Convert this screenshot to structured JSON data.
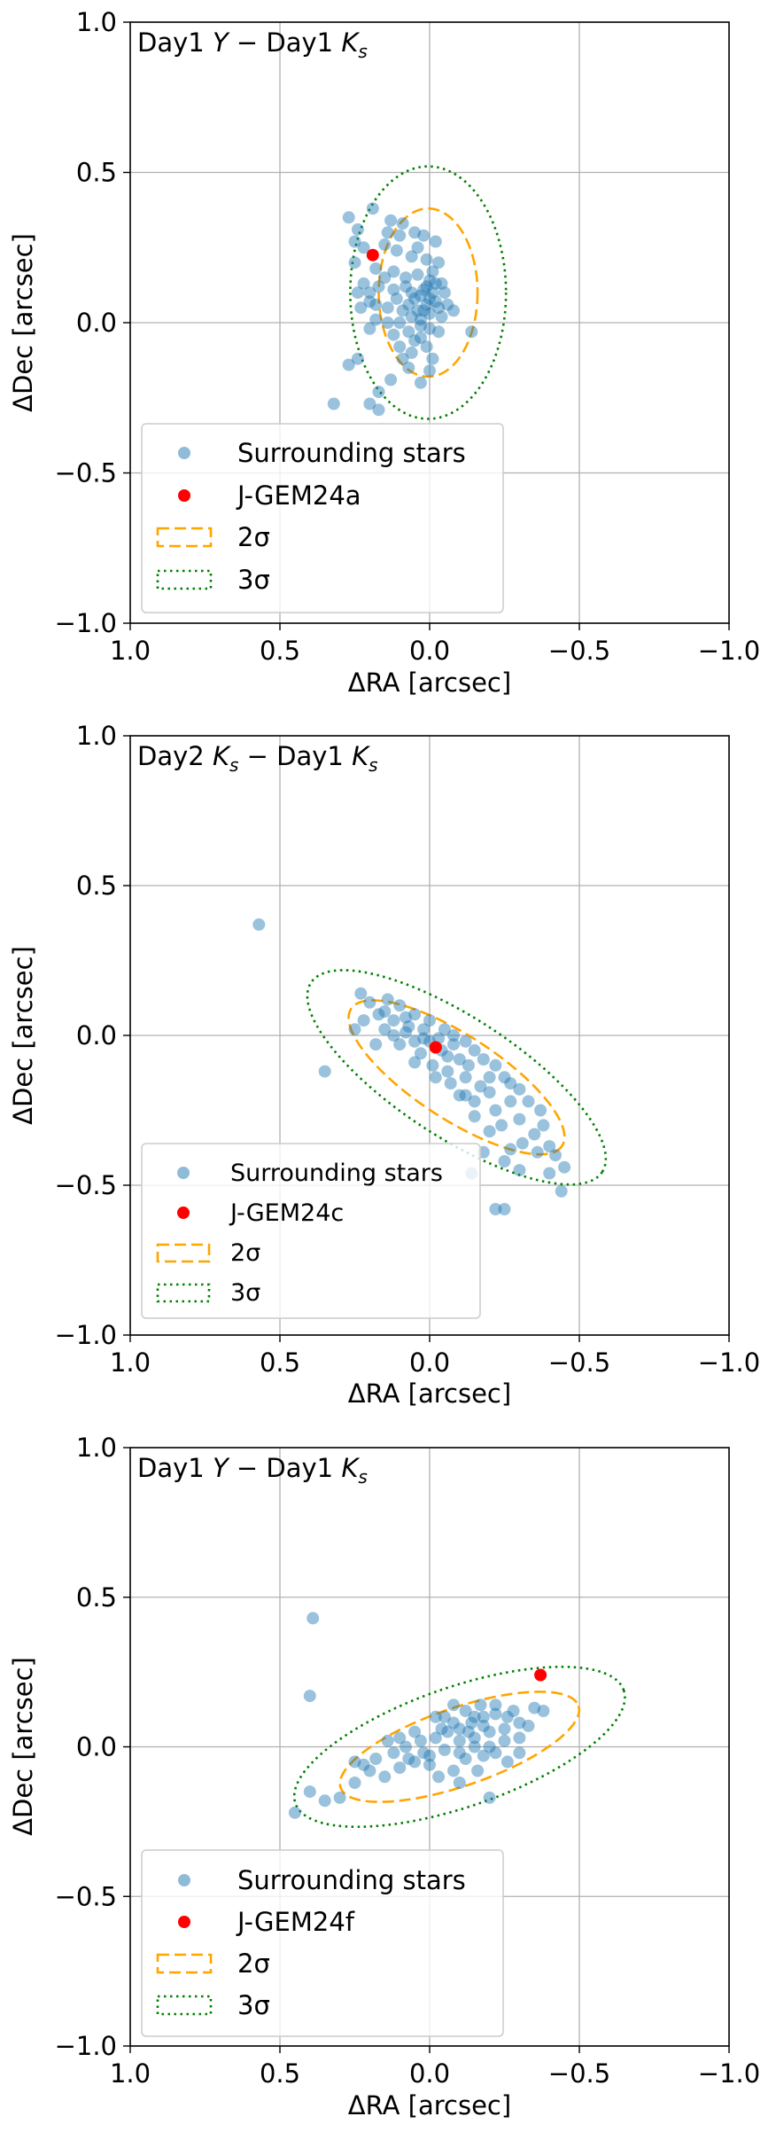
{
  "chart_data": [
    {
      "type": "scatter",
      "title": "Day1 Y − Day1 Ks",
      "title_parts": {
        "a": "Day1 ",
        "b": "Y",
        "c": " − Day1 ",
        "d": "K",
        "e": "s"
      },
      "xlabel": "ΔRA [arcsec]",
      "ylabel": "ΔDec [arcsec]",
      "xlim": [
        1.0,
        -1.0
      ],
      "ylim": [
        -1.0,
        1.0
      ],
      "xticks": [
        1.0,
        0.5,
        0.0,
        -0.5,
        -1.0
      ],
      "xtick_labels": [
        "1.0",
        "0.5",
        "0.0",
        "−0.5",
        "−1.0"
      ],
      "yticks": [
        -1.0,
        -0.5,
        0.0,
        0.5,
        1.0
      ],
      "ytick_labels": [
        "−1.0",
        "−0.5",
        "0.0",
        "0.5",
        "1.0"
      ],
      "grid": true,
      "legend_position": "lower-left",
      "legend": {
        "stars": "Surrounding stars",
        "target": "J-GEM24a",
        "sig2": "2σ",
        "sig3": "3σ"
      },
      "colors": {
        "stars": "#1f77b4",
        "target": "#ff0000",
        "sig2": "#ffa500",
        "sig3": "#008000"
      },
      "target": {
        "x": 0.19,
        "y": 0.225
      },
      "ellipse_2sigma": {
        "cx": 0.005,
        "cy": 0.1,
        "rx": 0.165,
        "ry": 0.28,
        "angle": 0
      },
      "ellipse_3sigma": {
        "cx": 0.005,
        "cy": 0.1,
        "rx": 0.26,
        "ry": 0.42,
        "angle": 0
      },
      "stars": [
        [
          0.27,
          0.35
        ],
        [
          0.24,
          0.31
        ],
        [
          0.19,
          0.38
        ],
        [
          0.13,
          0.34
        ],
        [
          0.09,
          0.33
        ],
        [
          0.05,
          0.3
        ],
        [
          0.02,
          0.29
        ],
        [
          -0.02,
          0.27
        ],
        [
          0.25,
          0.27
        ],
        [
          0.22,
          0.25
        ],
        [
          0.15,
          0.26
        ],
        [
          0.11,
          0.24
        ],
        [
          0.06,
          0.22
        ],
        [
          0.01,
          0.21
        ],
        [
          -0.03,
          0.2
        ],
        [
          0.25,
          0.2
        ],
        [
          0.18,
          0.18
        ],
        [
          0.12,
          0.17
        ],
        [
          0.08,
          0.15
        ],
        [
          0.04,
          0.16
        ],
        [
          0.0,
          0.14
        ],
        [
          -0.04,
          0.13
        ],
        [
          0.02,
          0.11
        ],
        [
          -0.01,
          0.1
        ],
        [
          0.03,
          0.09
        ],
        [
          0.0,
          0.08
        ],
        [
          -0.02,
          0.07
        ],
        [
          0.05,
          0.08
        ],
        [
          0.01,
          0.06
        ],
        [
          -0.03,
          0.05
        ],
        [
          0.02,
          0.04
        ],
        [
          0.0,
          0.03
        ],
        [
          -0.04,
          0.02
        ],
        [
          0.03,
          0.01
        ],
        [
          0.06,
          0.02
        ],
        [
          0.09,
          0.04
        ],
        [
          0.14,
          0.05
        ],
        [
          0.2,
          0.07
        ],
        [
          0.24,
          0.1
        ],
        [
          0.23,
          0.05
        ],
        [
          0.17,
          0.12
        ],
        [
          0.12,
          0.11
        ],
        [
          0.08,
          0.12
        ],
        [
          0.06,
          0.1
        ],
        [
          0.01,
          0.12
        ],
        [
          -0.02,
          0.13
        ],
        [
          -0.05,
          0.1
        ],
        [
          -0.06,
          0.06
        ],
        [
          -0.08,
          0.04
        ],
        [
          0.1,
          0.0
        ],
        [
          0.14,
          0.0
        ],
        [
          0.18,
          0.01
        ],
        [
          0.2,
          -0.02
        ],
        [
          0.12,
          -0.04
        ],
        [
          0.07,
          -0.03
        ],
        [
          0.03,
          -0.01
        ],
        [
          0.0,
          -0.02
        ],
        [
          -0.03,
          -0.03
        ],
        [
          -0.14,
          -0.03
        ],
        [
          0.1,
          -0.08
        ],
        [
          0.06,
          -0.1
        ],
        [
          0.01,
          -0.08
        ],
        [
          0.03,
          -0.05
        ],
        [
          0.05,
          -0.06
        ],
        [
          0.09,
          -0.12
        ],
        [
          0.07,
          -0.15
        ],
        [
          0.13,
          -0.19
        ],
        [
          0.17,
          -0.23
        ],
        [
          0.24,
          -0.12
        ],
        [
          0.27,
          -0.14
        ],
        [
          0.32,
          -0.27
        ],
        [
          0.2,
          -0.27
        ],
        [
          0.17,
          -0.29
        ],
        [
          0.0,
          -0.16
        ],
        [
          0.03,
          -0.2
        ],
        [
          -0.01,
          -0.12
        ],
        [
          0.22,
          0.13
        ],
        [
          0.1,
          0.29
        ],
        [
          0.04,
          0.25
        ],
        [
          0.18,
          0.06
        ],
        [
          -0.01,
          0.17
        ],
        [
          0.04,
          0.04
        ],
        [
          0.07,
          0.06
        ],
        [
          0.11,
          0.08
        ],
        [
          0.15,
          0.15
        ],
        [
          0.2,
          0.1
        ],
        [
          0.14,
          0.3
        ]
      ]
    },
    {
      "type": "scatter",
      "title": "Day2 Ks − Day1 Ks",
      "title_parts": {
        "a": "Day2 ",
        "b": "K",
        "c": "s",
        "d": " − Day1 ",
        "e": "K",
        "f": "s"
      },
      "xlabel": "ΔRA [arcsec]",
      "ylabel": "ΔDec [arcsec]",
      "xlim": [
        1.0,
        -1.0
      ],
      "ylim": [
        -1.0,
        1.0
      ],
      "xticks": [
        1.0,
        0.5,
        0.0,
        -0.5,
        -1.0
      ],
      "xtick_labels": [
        "1.0",
        "0.5",
        "0.0",
        "−0.5",
        "−1.0"
      ],
      "yticks": [
        -1.0,
        -0.5,
        0.0,
        0.5,
        1.0
      ],
      "ytick_labels": [
        "−1.0",
        "−0.5",
        "0.0",
        "0.5",
        "1.0"
      ],
      "grid": true,
      "legend_position": "lower-left",
      "legend": {
        "stars": "Surrounding stars",
        "target": "J-GEM24c",
        "sig2": "2σ",
        "sig3": "3σ"
      },
      "colors": {
        "stars": "#1f77b4",
        "target": "#ff0000",
        "sig2": "#ffa500",
        "sig3": "#008000"
      },
      "target": {
        "x": -0.02,
        "y": -0.04
      },
      "ellipse_2sigma": {
        "cx": -0.09,
        "cy": -0.14,
        "rx": 0.42,
        "ry": 0.14,
        "angle": 33
      },
      "ellipse_3sigma": {
        "cx": -0.09,
        "cy": -0.14,
        "rx": 0.58,
        "ry": 0.2,
        "angle": 33
      },
      "stars": [
        [
          0.57,
          0.37
        ],
        [
          0.35,
          -0.12
        ],
        [
          0.23,
          0.14
        ],
        [
          0.2,
          0.11
        ],
        [
          0.14,
          0.12
        ],
        [
          0.1,
          0.1
        ],
        [
          0.05,
          0.07
        ],
        [
          0.0,
          0.05
        ],
        [
          -0.05,
          0.02
        ],
        [
          0.22,
          0.05
        ],
        [
          0.17,
          0.07
        ],
        [
          0.12,
          0.05
        ],
        [
          0.07,
          0.03
        ],
        [
          0.02,
          0.02
        ],
        [
          -0.03,
          -0.01
        ],
        [
          0.12,
          0.0
        ],
        [
          0.08,
          0.01
        ],
        [
          0.05,
          -0.02
        ],
        [
          0.0,
          -0.02
        ],
        [
          -0.04,
          -0.05
        ],
        [
          -0.08,
          -0.03
        ],
        [
          -0.1,
          -0.08
        ],
        [
          -0.13,
          -0.1
        ],
        [
          0.15,
          0.02
        ],
        [
          0.1,
          -0.03
        ],
        [
          0.03,
          -0.06
        ],
        [
          -0.01,
          -0.1
        ],
        [
          -0.06,
          -0.12
        ],
        [
          -0.12,
          -0.14
        ],
        [
          -0.17,
          -0.17
        ],
        [
          -0.2,
          -0.19
        ],
        [
          -0.15,
          -0.22
        ],
        [
          -0.1,
          -0.2
        ],
        [
          -0.22,
          -0.25
        ],
        [
          -0.27,
          -0.22
        ],
        [
          -0.24,
          -0.3
        ],
        [
          -0.3,
          -0.28
        ],
        [
          -0.35,
          -0.33
        ],
        [
          -0.31,
          -0.36
        ],
        [
          -0.38,
          -0.3
        ],
        [
          -0.4,
          -0.37
        ],
        [
          -0.42,
          -0.4
        ],
        [
          -0.45,
          -0.44
        ],
        [
          -0.36,
          -0.39
        ],
        [
          -0.27,
          -0.38
        ],
        [
          -0.2,
          -0.32
        ],
        [
          -0.18,
          -0.39
        ],
        [
          -0.25,
          -0.42
        ],
        [
          -0.3,
          -0.45
        ],
        [
          -0.14,
          -0.46
        ],
        [
          -0.22,
          -0.58
        ],
        [
          -0.25,
          -0.58
        ],
        [
          -0.4,
          -0.46
        ],
        [
          -0.44,
          -0.52
        ],
        [
          0.05,
          -0.09
        ],
        [
          -0.02,
          -0.14
        ],
        [
          -0.07,
          -0.16
        ],
        [
          -0.12,
          -0.2
        ],
        [
          -0.15,
          -0.27
        ],
        [
          0.18,
          -0.03
        ],
        [
          0.25,
          0.02
        ],
        [
          0.15,
          0.08
        ],
        [
          0.08,
          0.06
        ],
        [
          -0.08,
          0.0
        ],
        [
          -0.15,
          -0.05
        ],
        [
          -0.18,
          -0.08
        ],
        [
          -0.22,
          -0.1
        ],
        [
          -0.25,
          -0.14
        ],
        [
          -0.3,
          -0.18
        ],
        [
          -0.33,
          -0.22
        ],
        [
          -0.37,
          -0.25
        ],
        [
          -0.06,
          -0.07
        ],
        [
          0.02,
          -0.01
        ],
        [
          -0.12,
          -0.02
        ],
        [
          -0.2,
          -0.14
        ],
        [
          -0.27,
          -0.16
        ]
      ]
    },
    {
      "type": "scatter",
      "title": "Day1 Y − Day1 Ks",
      "title_parts": {
        "a": "Day1 ",
        "b": "Y",
        "c": " − Day1 ",
        "d": "K",
        "e": "s"
      },
      "xlabel": "ΔRA [arcsec]",
      "ylabel": "ΔDec [arcsec]",
      "xlim": [
        1.0,
        -1.0
      ],
      "ylim": [
        -1.0,
        1.0
      ],
      "xticks": [
        1.0,
        0.5,
        0.0,
        -0.5,
        -1.0
      ],
      "xtick_labels": [
        "1.0",
        "0.5",
        "0.0",
        "−0.5",
        "−1.0"
      ],
      "yticks": [
        -1.0,
        -0.5,
        0.0,
        0.5,
        1.0
      ],
      "ytick_labels": [
        "−1.0",
        "−0.5",
        "0.0",
        "0.5",
        "1.0"
      ],
      "grid": true,
      "legend_position": "lower-left",
      "legend": {
        "stars": "Surrounding stars",
        "target": "J-GEM24f",
        "sig2": "2σ",
        "sig3": "3σ"
      },
      "colors": {
        "stars": "#1f77b4",
        "target": "#ff0000",
        "sig2": "#ffa500",
        "sig3": "#008000"
      },
      "target": {
        "x": -0.37,
        "y": 0.24
      },
      "ellipse_2sigma": {
        "cx": -0.1,
        "cy": 0.0,
        "rx": 0.42,
        "ry": 0.13,
        "angle": -19
      },
      "ellipse_3sigma": {
        "cx": -0.1,
        "cy": 0.0,
        "rx": 0.58,
        "ry": 0.2,
        "angle": -19
      },
      "stars": [
        [
          0.39,
          0.43
        ],
        [
          0.4,
          0.17
        ],
        [
          0.45,
          -0.22
        ],
        [
          0.4,
          -0.15
        ],
        [
          0.35,
          -0.18
        ],
        [
          0.3,
          -0.17
        ],
        [
          0.25,
          -0.12
        ],
        [
          0.2,
          -0.08
        ],
        [
          0.15,
          -0.1
        ],
        [
          0.1,
          -0.07
        ],
        [
          0.05,
          -0.05
        ],
        [
          0.0,
          -0.03
        ],
        [
          0.25,
          -0.05
        ],
        [
          0.18,
          -0.04
        ],
        [
          0.12,
          -0.02
        ],
        [
          0.08,
          0.0
        ],
        [
          0.03,
          0.02
        ],
        [
          -0.02,
          0.03
        ],
        [
          -0.06,
          0.05
        ],
        [
          -0.1,
          0.06
        ],
        [
          -0.14,
          0.08
        ],
        [
          -0.18,
          0.1
        ],
        [
          -0.22,
          0.11
        ],
        [
          -0.26,
          0.1
        ],
        [
          -0.3,
          0.08
        ],
        [
          -0.35,
          0.13
        ],
        [
          -0.38,
          0.12
        ],
        [
          -0.05,
          -0.01
        ],
        [
          -0.1,
          0.02
        ],
        [
          -0.15,
          0.03
        ],
        [
          -0.2,
          0.05
        ],
        [
          -0.25,
          0.06
        ],
        [
          -0.3,
          0.03
        ],
        [
          -0.12,
          -0.04
        ],
        [
          -0.18,
          -0.03
        ],
        [
          -0.22,
          -0.02
        ],
        [
          -0.08,
          -0.08
        ],
        [
          -0.03,
          -0.1
        ],
        [
          0.0,
          -0.06
        ],
        [
          -0.05,
          0.1
        ],
        [
          -0.12,
          0.12
        ],
        [
          -0.17,
          0.14
        ],
        [
          -0.08,
          0.14
        ],
        [
          -0.02,
          0.1
        ],
        [
          -0.1,
          -0.12
        ],
        [
          -0.2,
          -0.17
        ],
        [
          0.05,
          0.05
        ],
        [
          0.1,
          0.03
        ],
        [
          -0.15,
          0.0
        ],
        [
          -0.2,
          0.0
        ],
        [
          -0.25,
          0.02
        ],
        [
          -0.15,
          0.1
        ],
        [
          -0.08,
          0.08
        ],
        [
          -0.18,
          0.07
        ],
        [
          -0.28,
          0.12
        ],
        [
          -0.22,
          0.14
        ],
        [
          -0.04,
          0.06
        ],
        [
          -0.13,
          0.05
        ],
        [
          0.02,
          -0.02
        ],
        [
          0.07,
          -0.04
        ],
        [
          -0.26,
          -0.05
        ],
        [
          -0.3,
          -0.02
        ],
        [
          -0.1,
          -0.02
        ],
        [
          -0.16,
          -0.08
        ],
        [
          0.14,
          0.02
        ],
        [
          0.22,
          -0.06
        ],
        [
          -0.33,
          0.07
        ]
      ]
    }
  ]
}
